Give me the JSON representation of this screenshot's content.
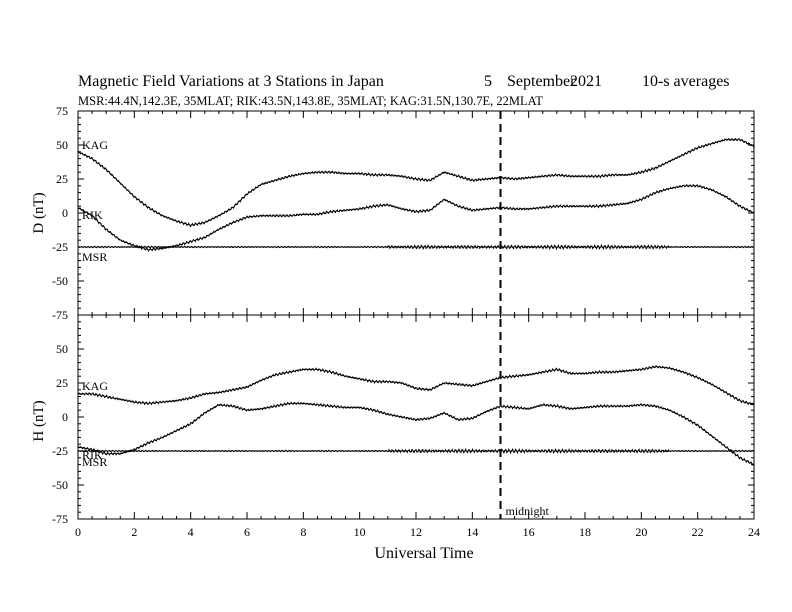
{
  "header": {
    "title": "Magnetic Field Variations at 3 Stations in Japan",
    "day": "5",
    "month": "September",
    "year": "2021",
    "averaging": "10-s averages",
    "stations_line": "MSR:44.4N,142.3E, 35MLAT;  RIK:43.5N,143.8E, 35MLAT;  KAG:31.5N,130.7E, 22MLAT"
  },
  "chart_data": [
    {
      "type": "line",
      "panel": "top",
      "ylabel": "D (nT)",
      "ylim": [
        -75,
        75
      ],
      "yticks": [
        75,
        50,
        25,
        0,
        -25,
        -50,
        -75
      ],
      "xlim": [
        0,
        24
      ],
      "grid": false,
      "series": [
        {
          "name": "KAG",
          "x": [
            0,
            0.5,
            1,
            1.5,
            2,
            2.5,
            3,
            3.5,
            4,
            4.5,
            5,
            5.5,
            6,
            6.5,
            7,
            7.5,
            8,
            8.5,
            9,
            9.5,
            10,
            10.5,
            11,
            11.5,
            12,
            12.5,
            13,
            13.5,
            14,
            14.5,
            15,
            15.5,
            16,
            16.5,
            17,
            17.5,
            18,
            18.5,
            19,
            19.5,
            20,
            20.5,
            21,
            21.5,
            22,
            22.5,
            23,
            23.5,
            24
          ],
          "values": [
            45,
            40,
            32,
            22,
            12,
            4,
            -2,
            -6,
            -9,
            -7,
            -2,
            4,
            14,
            21,
            24,
            27,
            29,
            30,
            30,
            29,
            29,
            28,
            28,
            27,
            25,
            24,
            30,
            27,
            24,
            25,
            26,
            25,
            26,
            27,
            28,
            27,
            27,
            27,
            28,
            28,
            30,
            33,
            38,
            43,
            48,
            51,
            54,
            54,
            49
          ]
        },
        {
          "name": "RIK",
          "x": [
            0,
            0.5,
            1,
            1.5,
            2,
            2.5,
            3,
            3.5,
            4,
            4.5,
            5,
            5.5,
            6,
            6.5,
            7,
            7.5,
            8,
            8.5,
            9,
            9.5,
            10,
            10.5,
            11,
            11.5,
            12,
            12.5,
            13,
            13.5,
            14,
            14.5,
            15,
            15.5,
            16,
            16.5,
            17,
            17.5,
            18,
            18.5,
            19,
            19.5,
            20,
            20.5,
            21,
            21.5,
            22,
            22.5,
            23,
            23.5,
            24
          ],
          "values": [
            4,
            -2,
            -12,
            -20,
            -24,
            -27,
            -26,
            -24,
            -21,
            -18,
            -12,
            -7,
            -3,
            -2,
            -2,
            -2,
            -1,
            -1,
            1,
            2,
            3,
            5,
            6,
            3,
            1,
            2,
            10,
            5,
            2,
            3,
            4,
            3,
            3,
            4,
            5,
            5,
            5,
            5,
            6,
            7,
            10,
            15,
            18,
            20,
            20,
            17,
            12,
            5,
            0
          ]
        },
        {
          "name": "MSR",
          "x": [
            0,
            24
          ],
          "values": [
            -25,
            -25
          ]
        }
      ]
    },
    {
      "type": "line",
      "panel": "bottom",
      "ylabel": "H (nT)",
      "ylim": [
        -75,
        75
      ],
      "yticks": [
        50,
        25,
        0,
        -25,
        -50,
        -75
      ],
      "xlim": [
        0,
        24
      ],
      "xlabel": "Universal Time",
      "xticks": [
        0,
        2,
        4,
        6,
        8,
        10,
        12,
        14,
        16,
        18,
        20,
        22,
        24
      ],
      "grid": false,
      "series": [
        {
          "name": "KAG",
          "x": [
            0,
            0.5,
            1,
            1.5,
            2,
            2.5,
            3,
            3.5,
            4,
            4.5,
            5,
            5.5,
            6,
            6.5,
            7,
            7.5,
            8,
            8.5,
            9,
            9.5,
            10,
            10.5,
            11,
            11.5,
            12,
            12.5,
            13,
            13.5,
            14,
            14.5,
            15,
            15.5,
            16,
            16.5,
            17,
            17.5,
            18,
            18.5,
            19,
            19.5,
            20,
            20.5,
            21,
            21.5,
            22,
            22.5,
            23,
            23.5,
            24
          ],
          "values": [
            17,
            17,
            15,
            13,
            11,
            10,
            11,
            12,
            14,
            17,
            18,
            20,
            22,
            27,
            31,
            33,
            35,
            35,
            33,
            30,
            28,
            26,
            26,
            25,
            21,
            20,
            25,
            24,
            23,
            26,
            29,
            30,
            31,
            33,
            35,
            32,
            32,
            33,
            33,
            34,
            35,
            37,
            36,
            33,
            29,
            24,
            18,
            12,
            9
          ]
        },
        {
          "name": "RIK",
          "x": [
            0,
            0.5,
            1,
            1.5,
            2,
            2.5,
            3,
            3.5,
            4,
            4.5,
            5,
            5.5,
            6,
            6.5,
            7,
            7.5,
            8,
            8.5,
            9,
            9.5,
            10,
            10.5,
            11,
            11.5,
            12,
            12.5,
            13,
            13.5,
            14,
            14.5,
            15,
            15.5,
            16,
            16.5,
            17,
            17.5,
            18,
            18.5,
            19,
            19.5,
            20,
            20.5,
            21,
            21.5,
            22,
            22.5,
            23,
            23.5,
            24
          ],
          "values": [
            -22,
            -24,
            -27,
            -27,
            -24,
            -19,
            -15,
            -10,
            -5,
            3,
            9,
            8,
            5,
            6,
            8,
            10,
            10,
            9,
            8,
            7,
            7,
            5,
            2,
            0,
            -2,
            -1,
            3,
            -2,
            -1,
            4,
            8,
            7,
            6,
            9,
            8,
            6,
            7,
            8,
            8,
            8,
            9,
            8,
            5,
            0,
            -6,
            -14,
            -22,
            -30,
            -35
          ]
        },
        {
          "name": "MSR",
          "x": [
            0,
            24
          ],
          "values": [
            -25,
            -25
          ]
        }
      ]
    }
  ],
  "annotations": {
    "midnight_label": "midnight",
    "midnight_x": 15
  }
}
